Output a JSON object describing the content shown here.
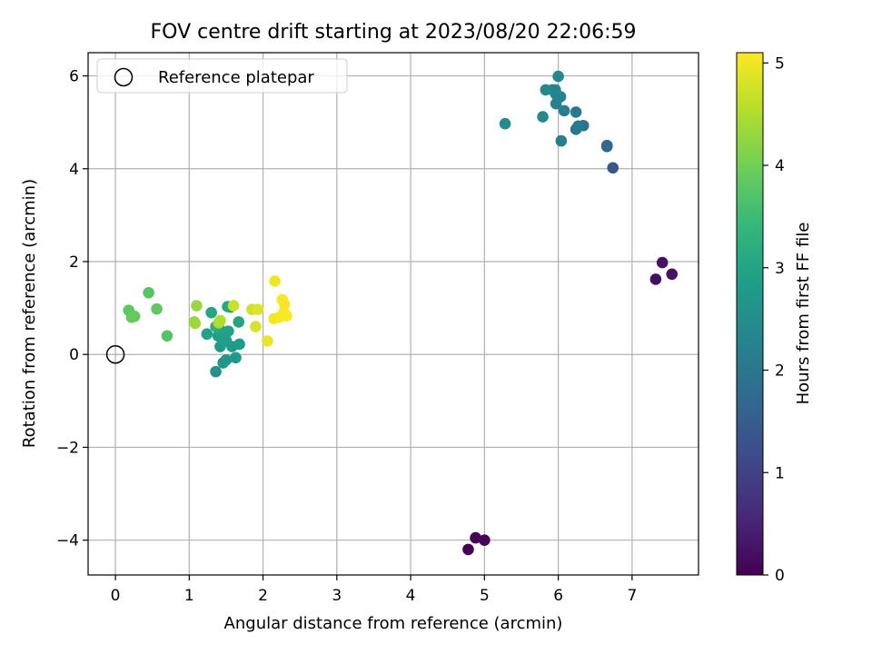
{
  "chart_data": {
    "type": "scatter",
    "title": "FOV centre drift starting at 2023/08/20 22:06:59",
    "xlabel": "Angular distance from reference (arcmin)",
    "ylabel": "Rotation from reference (arcmin)",
    "xlim": [
      -0.37,
      7.9
    ],
    "ylim": [
      -4.75,
      6.5
    ],
    "xticks": [
      "0",
      "1",
      "2",
      "3",
      "4",
      "5",
      "6",
      "7"
    ],
    "yticks": [
      "−4",
      "−2",
      "0",
      "2",
      "4",
      "6"
    ],
    "grid": true,
    "legend": {
      "placement": "top-left",
      "label": "Reference platepar"
    },
    "reference_point": {
      "x": 0,
      "y": 0
    },
    "colorbar": {
      "label": "Hours from first FF file",
      "range": [
        0,
        5.1
      ],
      "ticks": [
        "0",
        "1",
        "2",
        "3",
        "4",
        "5"
      ],
      "colormap": [
        "#440154",
        "#482878",
        "#3e4989",
        "#31688e",
        "#26828e",
        "#1f9e89",
        "#35b779",
        "#6ece58",
        "#b5de2b",
        "#fde725"
      ]
    },
    "points": [
      {
        "x": 4.78,
        "y": -4.2,
        "c": 0.03
      },
      {
        "x": 4.88,
        "y": -3.95,
        "c": 0.06
      },
      {
        "x": 5.0,
        "y": -4.0,
        "c": 0.09
      },
      {
        "x": 7.32,
        "y": 1.62,
        "c": 0.2
      },
      {
        "x": 7.41,
        "y": 1.98,
        "c": 0.23
      },
      {
        "x": 7.54,
        "y": 1.73,
        "c": 0.26
      },
      {
        "x": 6.74,
        "y": 4.02,
        "c": 1.4
      },
      {
        "x": 6.66,
        "y": 4.48,
        "c": 1.55
      },
      {
        "x": 6.66,
        "y": 4.5,
        "c": 1.7
      },
      {
        "x": 6.34,
        "y": 4.93,
        "c": 1.95
      },
      {
        "x": 6.24,
        "y": 4.85,
        "c": 2.0
      },
      {
        "x": 6.24,
        "y": 5.22,
        "c": 2.05
      },
      {
        "x": 6.27,
        "y": 4.92,
        "c": 2.1
      },
      {
        "x": 6.08,
        "y": 5.25,
        "c": 2.15
      },
      {
        "x": 6.04,
        "y": 4.6,
        "c": 2.2
      },
      {
        "x": 6.03,
        "y": 5.55,
        "c": 2.22
      },
      {
        "x": 5.97,
        "y": 5.4,
        "c": 2.25
      },
      {
        "x": 5.97,
        "y": 5.6,
        "c": 2.28
      },
      {
        "x": 5.96,
        "y": 5.7,
        "c": 2.3
      },
      {
        "x": 5.92,
        "y": 5.7,
        "c": 2.32
      },
      {
        "x": 6.0,
        "y": 5.99,
        "c": 2.35
      },
      {
        "x": 5.83,
        "y": 5.7,
        "c": 2.38
      },
      {
        "x": 5.79,
        "y": 5.12,
        "c": 2.4
      },
      {
        "x": 5.28,
        "y": 4.97,
        "c": 2.45
      },
      {
        "x": 1.56,
        "y": 1.02,
        "c": 2.5
      },
      {
        "x": 1.36,
        "y": -0.37,
        "c": 2.6
      },
      {
        "x": 1.46,
        "y": -0.18,
        "c": 2.65
      },
      {
        "x": 1.5,
        "y": -0.12,
        "c": 2.7
      },
      {
        "x": 1.63,
        "y": -0.07,
        "c": 2.72
      },
      {
        "x": 1.42,
        "y": 0.17,
        "c": 2.75
      },
      {
        "x": 1.58,
        "y": 0.17,
        "c": 2.78
      },
      {
        "x": 1.68,
        "y": 0.22,
        "c": 2.8
      },
      {
        "x": 1.5,
        "y": 0.3,
        "c": 2.83
      },
      {
        "x": 1.39,
        "y": 0.4,
        "c": 2.85
      },
      {
        "x": 1.48,
        "y": 0.45,
        "c": 2.88
      },
      {
        "x": 1.24,
        "y": 0.44,
        "c": 2.9
      },
      {
        "x": 1.53,
        "y": 0.5,
        "c": 2.92
      },
      {
        "x": 1.41,
        "y": 0.55,
        "c": 2.95
      },
      {
        "x": 1.67,
        "y": 0.7,
        "c": 2.97
      },
      {
        "x": 1.3,
        "y": 0.9,
        "c": 3.0
      },
      {
        "x": 1.52,
        "y": 1.03,
        "c": 3.05
      },
      {
        "x": 1.36,
        "y": 0.6,
        "c": 3.2
      },
      {
        "x": 0.7,
        "y": 0.4,
        "c": 3.7
      },
      {
        "x": 0.45,
        "y": 1.33,
        "c": 3.75
      },
      {
        "x": 0.18,
        "y": 0.95,
        "c": 3.8
      },
      {
        "x": 0.56,
        "y": 0.98,
        "c": 3.82
      },
      {
        "x": 0.22,
        "y": 0.8,
        "c": 3.85
      },
      {
        "x": 0.26,
        "y": 0.82,
        "c": 3.88
      },
      {
        "x": 1.07,
        "y": 0.7,
        "c": 4.2
      },
      {
        "x": 1.1,
        "y": 1.05,
        "c": 4.3
      },
      {
        "x": 1.08,
        "y": 0.67,
        "c": 4.35
      },
      {
        "x": 1.4,
        "y": 0.68,
        "c": 4.45
      },
      {
        "x": 1.42,
        "y": 0.73,
        "c": 4.5
      },
      {
        "x": 1.6,
        "y": 1.05,
        "c": 4.7
      },
      {
        "x": 1.85,
        "y": 0.97,
        "c": 4.75
      },
      {
        "x": 1.9,
        "y": 0.6,
        "c": 4.8
      },
      {
        "x": 1.93,
        "y": 0.97,
        "c": 4.85
      },
      {
        "x": 2.06,
        "y": 0.29,
        "c": 4.95
      },
      {
        "x": 2.16,
        "y": 1.58,
        "c": 5.0
      },
      {
        "x": 2.15,
        "y": 0.77,
        "c": 5.02
      },
      {
        "x": 2.22,
        "y": 0.8,
        "c": 5.04
      },
      {
        "x": 2.26,
        "y": 1.18,
        "c": 5.05
      },
      {
        "x": 2.29,
        "y": 1.08,
        "c": 5.06
      },
      {
        "x": 2.28,
        "y": 0.9,
        "c": 5.07
      },
      {
        "x": 2.32,
        "y": 0.83,
        "c": 5.08
      }
    ]
  }
}
